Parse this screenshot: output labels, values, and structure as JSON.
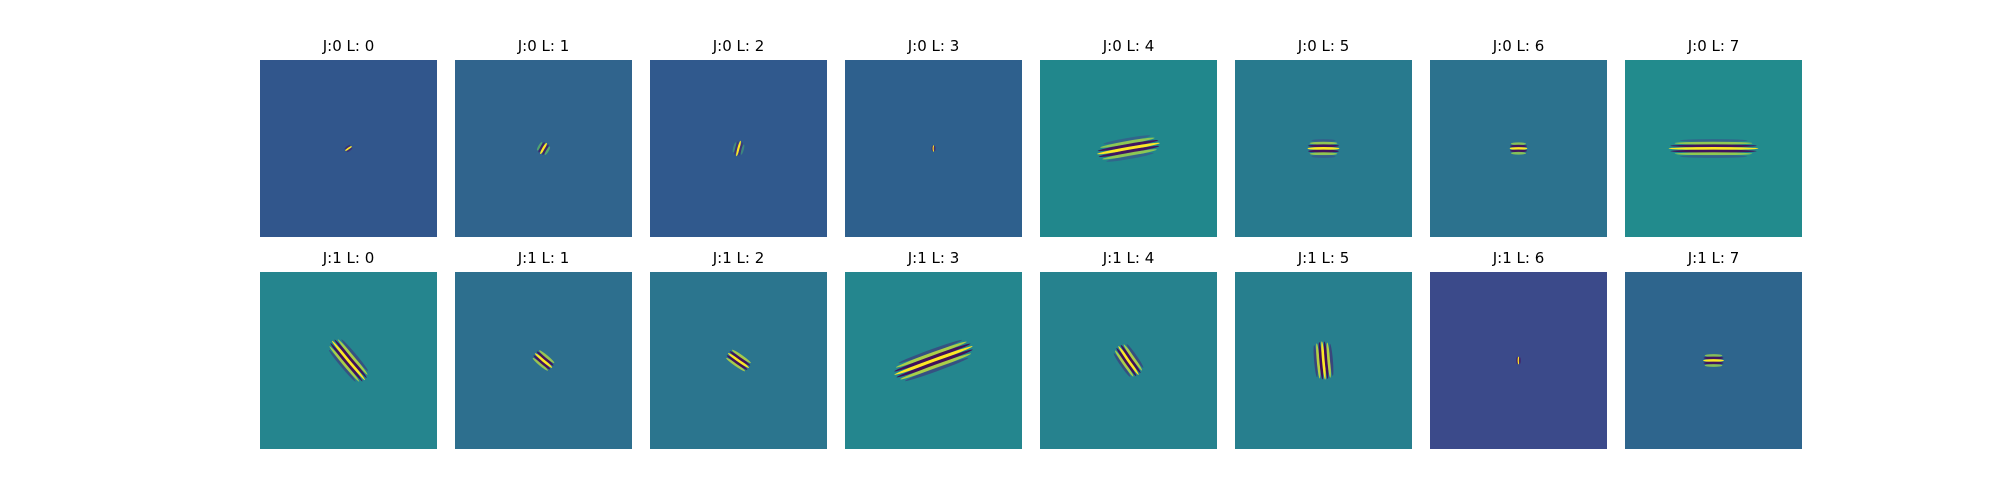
{
  "chart_data": {
    "type": "heatmap",
    "layout": {
      "rows": 2,
      "cols": 8
    },
    "colormap": [
      "#440154",
      "#3b528b",
      "#21918c",
      "#5ec962",
      "#fde725"
    ],
    "panels": [
      {
        "title": "J:0 L: 0",
        "background": "#31568c",
        "pattern": {
          "kind": "point",
          "angle": 35,
          "sigma_major": 2.5,
          "sigma_minor": 1.6,
          "freq": 0.55,
          "phase": 0.6,
          "cycles": 1
        }
      },
      {
        "title": "J:0 L: 1",
        "background": "#30648d",
        "pattern": {
          "kind": "gabor",
          "angle": 60,
          "sigma_major": 4.0,
          "sigma_minor": 2.6,
          "freq": 0.42,
          "phase": 0.3,
          "cycles": 2
        }
      },
      {
        "title": "J:0 L: 2",
        "background": "#30598d",
        "pattern": {
          "kind": "gabor",
          "angle": 75,
          "sigma_major": 5.0,
          "sigma_minor": 1.8,
          "freq": 0.45,
          "phase": 0.2,
          "cycles": 2
        }
      },
      {
        "title": "J:0 L: 3",
        "background": "#2e608d",
        "pattern": {
          "kind": "point",
          "angle": 90,
          "sigma_major": 2.0,
          "sigma_minor": 1.1,
          "freq": 0.9,
          "phase": 0.0,
          "cycles": 1
        }
      },
      {
        "title": "J:0 L: 4",
        "background": "#21878c",
        "pattern": {
          "kind": "gabor",
          "angle": 10,
          "sigma_major": 20.0,
          "sigma_minor": 5.0,
          "freq": 0.32,
          "phase": 0.0,
          "cycles": 3
        }
      },
      {
        "title": "J:0 L: 5",
        "background": "#287a8e",
        "pattern": {
          "kind": "gabor",
          "angle": 0,
          "sigma_major": 10.0,
          "sigma_minor": 4.5,
          "freq": 0.36,
          "phase": 0.0,
          "cycles": 3
        }
      },
      {
        "title": "J:0 L: 6",
        "background": "#2c728e",
        "pattern": {
          "kind": "gabor",
          "angle": 0,
          "sigma_major": 5.5,
          "sigma_minor": 3.8,
          "freq": 0.4,
          "phase": 0.0,
          "cycles": 2
        }
      },
      {
        "title": "J:0 L: 7",
        "background": "#228b8d",
        "pattern": {
          "kind": "gabor",
          "angle": 0,
          "sigma_major": 28.0,
          "sigma_minor": 4.5,
          "freq": 0.36,
          "phase": 0.0,
          "cycles": 3
        }
      },
      {
        "title": "J:1 L: 0",
        "background": "#25858e",
        "pattern": {
          "kind": "gabor",
          "angle": 130,
          "sigma_major": 16.0,
          "sigma_minor": 5.5,
          "freq": 0.35,
          "phase": 0.0,
          "cycles": 3
        }
      },
      {
        "title": "J:1 L: 1",
        "background": "#2d6f8e",
        "pattern": {
          "kind": "gabor",
          "angle": 140,
          "sigma_major": 7.0,
          "sigma_minor": 4.5,
          "freq": 0.38,
          "phase": 0.3,
          "cycles": 2
        }
      },
      {
        "title": "J:1 L: 2",
        "background": "#2b758e",
        "pattern": {
          "kind": "gabor",
          "angle": 145,
          "sigma_major": 8.0,
          "sigma_minor": 5.0,
          "freq": 0.38,
          "phase": 0.3,
          "cycles": 2
        }
      },
      {
        "title": "J:1 L: 3",
        "background": "#24868e",
        "pattern": {
          "kind": "gabor",
          "angle": 20,
          "sigma_major": 26.0,
          "sigma_minor": 6.5,
          "freq": 0.3,
          "phase": 0.0,
          "cycles": 3
        }
      },
      {
        "title": "J:1 L: 4",
        "background": "#26828e",
        "pattern": {
          "kind": "gabor",
          "angle": 125,
          "sigma_major": 11.0,
          "sigma_minor": 5.5,
          "freq": 0.36,
          "phase": 0.0,
          "cycles": 3
        }
      },
      {
        "title": "J:1 L: 5",
        "background": "#277f8e",
        "pattern": {
          "kind": "gabor",
          "angle": 95,
          "sigma_major": 12.0,
          "sigma_minor": 6.0,
          "freq": 0.36,
          "phase": 0.0,
          "cycles": 3
        }
      },
      {
        "title": "J:1 L: 6",
        "background": "#3b4a8a",
        "pattern": {
          "kind": "point",
          "angle": 90,
          "sigma_major": 2.4,
          "sigma_minor": 1.5,
          "freq": 0.75,
          "phase": 0.0,
          "cycles": 1
        }
      },
      {
        "title": "J:1 L: 7",
        "background": "#2e658d",
        "pattern": {
          "kind": "gabor",
          "angle": 0,
          "sigma_major": 6.5,
          "sigma_minor": 4.0,
          "freq": 0.38,
          "phase": 0.0,
          "cycles": 2
        }
      }
    ]
  }
}
